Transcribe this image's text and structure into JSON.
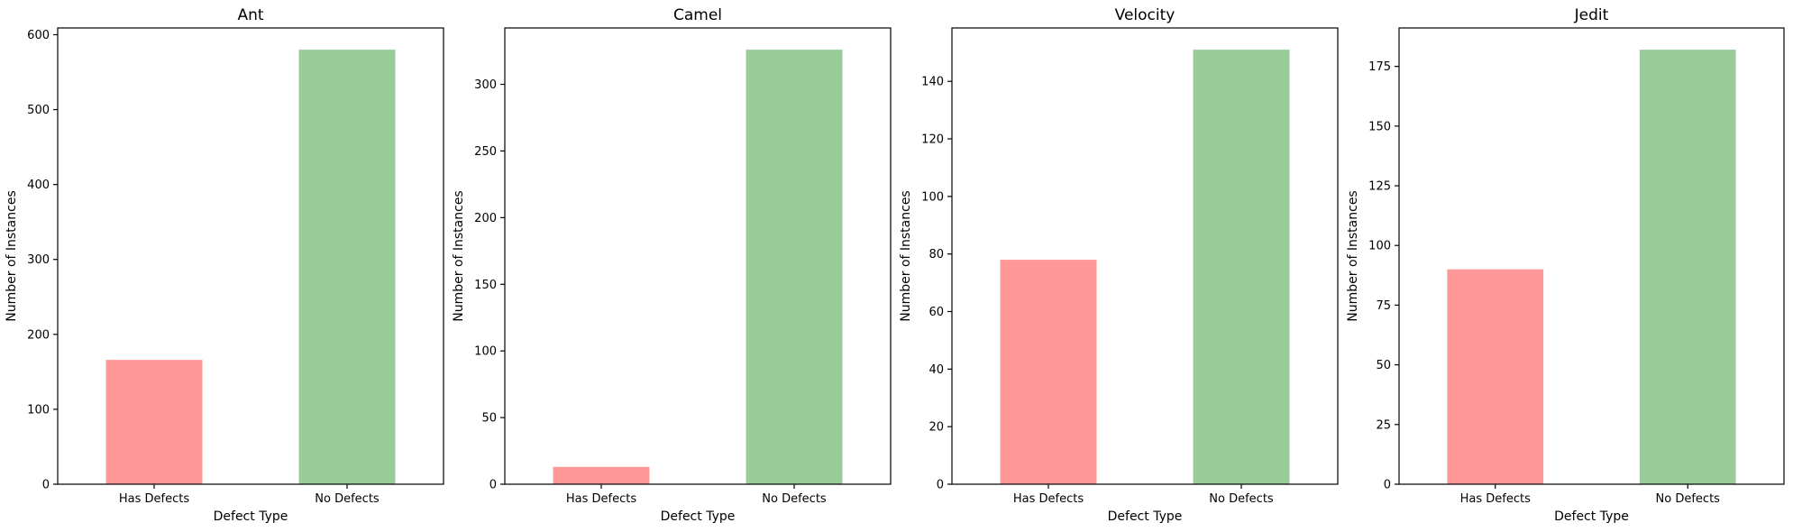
{
  "chart_data": [
    {
      "type": "bar",
      "title": "Ant",
      "xlabel": "Defect Type",
      "ylabel": "Number of Instances",
      "categories": [
        "Has Defects",
        "No Defects"
      ],
      "values": [
        166,
        580
      ],
      "ylim": [
        0,
        609
      ],
      "yticks": [
        0,
        100,
        200,
        300,
        400,
        500,
        600
      ],
      "colors": [
        "#ff9999",
        "#99cc99"
      ],
      "grid": false
    },
    {
      "type": "bar",
      "title": "Camel",
      "xlabel": "Defect Type",
      "ylabel": "Number of Instances",
      "categories": [
        "Has Defects",
        "No Defects"
      ],
      "values": [
        13,
        326
      ],
      "ylim": [
        0,
        342.3
      ],
      "yticks": [
        0,
        50,
        100,
        150,
        200,
        250,
        300
      ],
      "colors": [
        "#ff9999",
        "#99cc99"
      ],
      "grid": false
    },
    {
      "type": "bar",
      "title": "Velocity",
      "xlabel": "Defect Type",
      "ylabel": "Number of Instances",
      "categories": [
        "Has Defects",
        "No Defects"
      ],
      "values": [
        78,
        151
      ],
      "ylim": [
        0,
        158.55
      ],
      "yticks": [
        0,
        20,
        40,
        60,
        80,
        100,
        120,
        140
      ],
      "colors": [
        "#ff9999",
        "#99cc99"
      ],
      "grid": false
    },
    {
      "type": "bar",
      "title": "Jedit",
      "xlabel": "Defect Type",
      "ylabel": "Number of Instances",
      "categories": [
        "Has Defects",
        "No Defects"
      ],
      "values": [
        90,
        182
      ],
      "ylim": [
        0,
        191.1
      ],
      "yticks": [
        0,
        25,
        50,
        75,
        100,
        125,
        150,
        175
      ],
      "colors": [
        "#ff9999",
        "#99cc99"
      ],
      "grid": false
    }
  ]
}
